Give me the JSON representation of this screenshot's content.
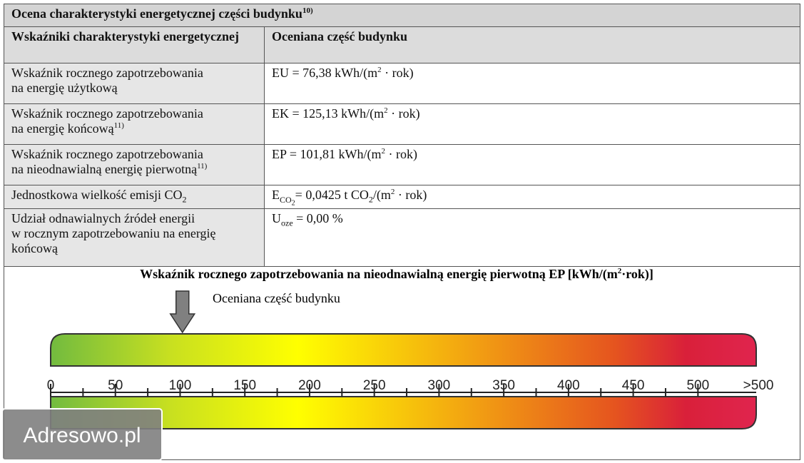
{
  "title": {
    "text": "Ocena charakterystyki energetycznej części budynku",
    "note": "10)"
  },
  "table": {
    "header": [
      "Wskaźniki charakterystyki energetycznej",
      "Oceniana część budynku"
    ],
    "rows": [
      {
        "label": [
          "Wskaźnik rocznego zapotrzebowania",
          "na energię użytkową"
        ],
        "value": [
          "EU = 76,38 kWh/(m",
          "2",
          " · rok)"
        ]
      },
      {
        "label": [
          "Wskaźnik rocznego zapotrzebowania",
          "na energię końcową"
        ],
        "note": "11)",
        "value": [
          "EK = 125,13 kWh/(m",
          "2",
          " · rok)"
        ]
      },
      {
        "label": [
          "Wskaźnik rocznego zapotrzebowania",
          "na nieodnawialną energię pierwotną"
        ],
        "note": "11)",
        "value": [
          "EP = 101,81 kWh/(m",
          "2",
          " · rok)"
        ]
      },
      {
        "label": [
          "Jednostkowa wielkość emisji CO",
          "2"
        ],
        "value": [
          "E",
          "CO",
          "2",
          "= 0,0425 t CO",
          "2",
          "/(m",
          "2",
          " · rok)"
        ]
      },
      {
        "label": [
          "Udział odnawialnych źródeł energii",
          "w rocznym zapotrzebowaniu na energię",
          "końcową"
        ],
        "value": [
          "U",
          "oze",
          " = 0,00 %"
        ]
      }
    ]
  },
  "scale": {
    "title": [
      "Wskaźnik rocznego zapotrzebowania na nieodnawialną energię pierwotną EP [kWh/(m",
      "2",
      "·rok)]"
    ],
    "arrow_label": "Oceniana część budynku",
    "marker": 101.81,
    "xlim": [
      0,
      545
    ],
    "xticks": [
      0,
      50,
      100,
      150,
      200,
      250,
      300,
      350,
      400,
      450,
      500,
      {
        "value": 550,
        "label": ">500"
      }
    ],
    "minor_ticks": [
      25,
      75,
      125,
      175,
      225,
      275,
      325,
      375,
      425,
      475
    ]
  },
  "watermark": "Adresowo.pl"
}
